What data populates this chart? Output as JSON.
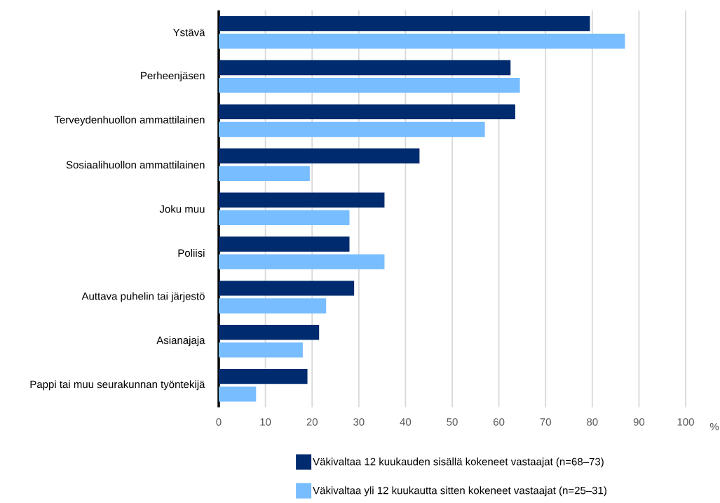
{
  "chart_data": {
    "type": "bar",
    "orientation": "horizontal",
    "categories": [
      "Ystävä",
      "Perheenjäsen",
      "Terveydenhuollon ammattilainen",
      "Sosiaalihuollon ammattilainen",
      "Joku muu",
      "Poliisi",
      "Auttava puhelin tai järjestö",
      "Asianajaja",
      "Pappi tai muu seurakunnan työntekijä"
    ],
    "series": [
      {
        "name": "Väkivaltaa 12 kuukauden sisällä kokeneet vastaajat (n=68–73)",
        "color": "#002b6e",
        "values": [
          79.5,
          62.5,
          63.5,
          43,
          35.5,
          28,
          29,
          21.5,
          19
        ]
      },
      {
        "name": "Väkivaltaa yli 12 kuukautta sitten kokeneet vastaajat (n=25–31)",
        "color": "#78bdff",
        "values": [
          87,
          64.5,
          57,
          19.5,
          28,
          35.5,
          23,
          18,
          8
        ]
      }
    ],
    "xlabel": "%",
    "xlim": [
      0,
      100
    ],
    "xticks": [
      0,
      10,
      20,
      30,
      40,
      50,
      60,
      70,
      80,
      90,
      100
    ],
    "grid": "x",
    "legend": "bottom"
  }
}
